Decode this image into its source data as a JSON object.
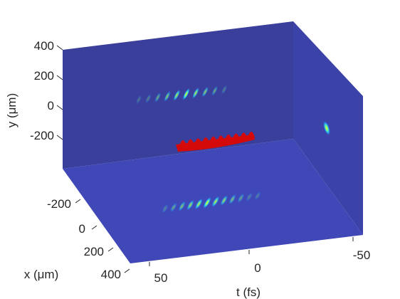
{
  "chart_data": {
    "type": "volumetric-3d",
    "title": "",
    "axes": {
      "x": {
        "label": "x (μm)",
        "ticks": [
          "-200",
          "0",
          "200",
          "400"
        ]
      },
      "y": {
        "label": "y (μm)",
        "ticks": [
          "400",
          "200",
          "0",
          "-200"
        ]
      },
      "t": {
        "label": "t (fs)",
        "ticks": [
          "50",
          "0",
          "-50"
        ]
      }
    },
    "colormap": "jet",
    "grid": false,
    "legend": "none",
    "colors": {
      "panel_back": "#3A3F9C",
      "panel_floor": "#3F48B6",
      "panel_side": "#3C43A8",
      "isosurface": "#D40A0A"
    },
    "features": [
      {
        "name": "back wall (t–y) projection",
        "type": "pulse train",
        "peaks": 10
      },
      {
        "name": "floor (t–x) projection",
        "type": "pulse train",
        "peaks": 12
      },
      {
        "name": "side wall (x–y) projection",
        "type": "single spot",
        "peaks": 1
      },
      {
        "name": "3D intensity isosurface",
        "type": "isosurface",
        "color": "red"
      }
    ]
  }
}
